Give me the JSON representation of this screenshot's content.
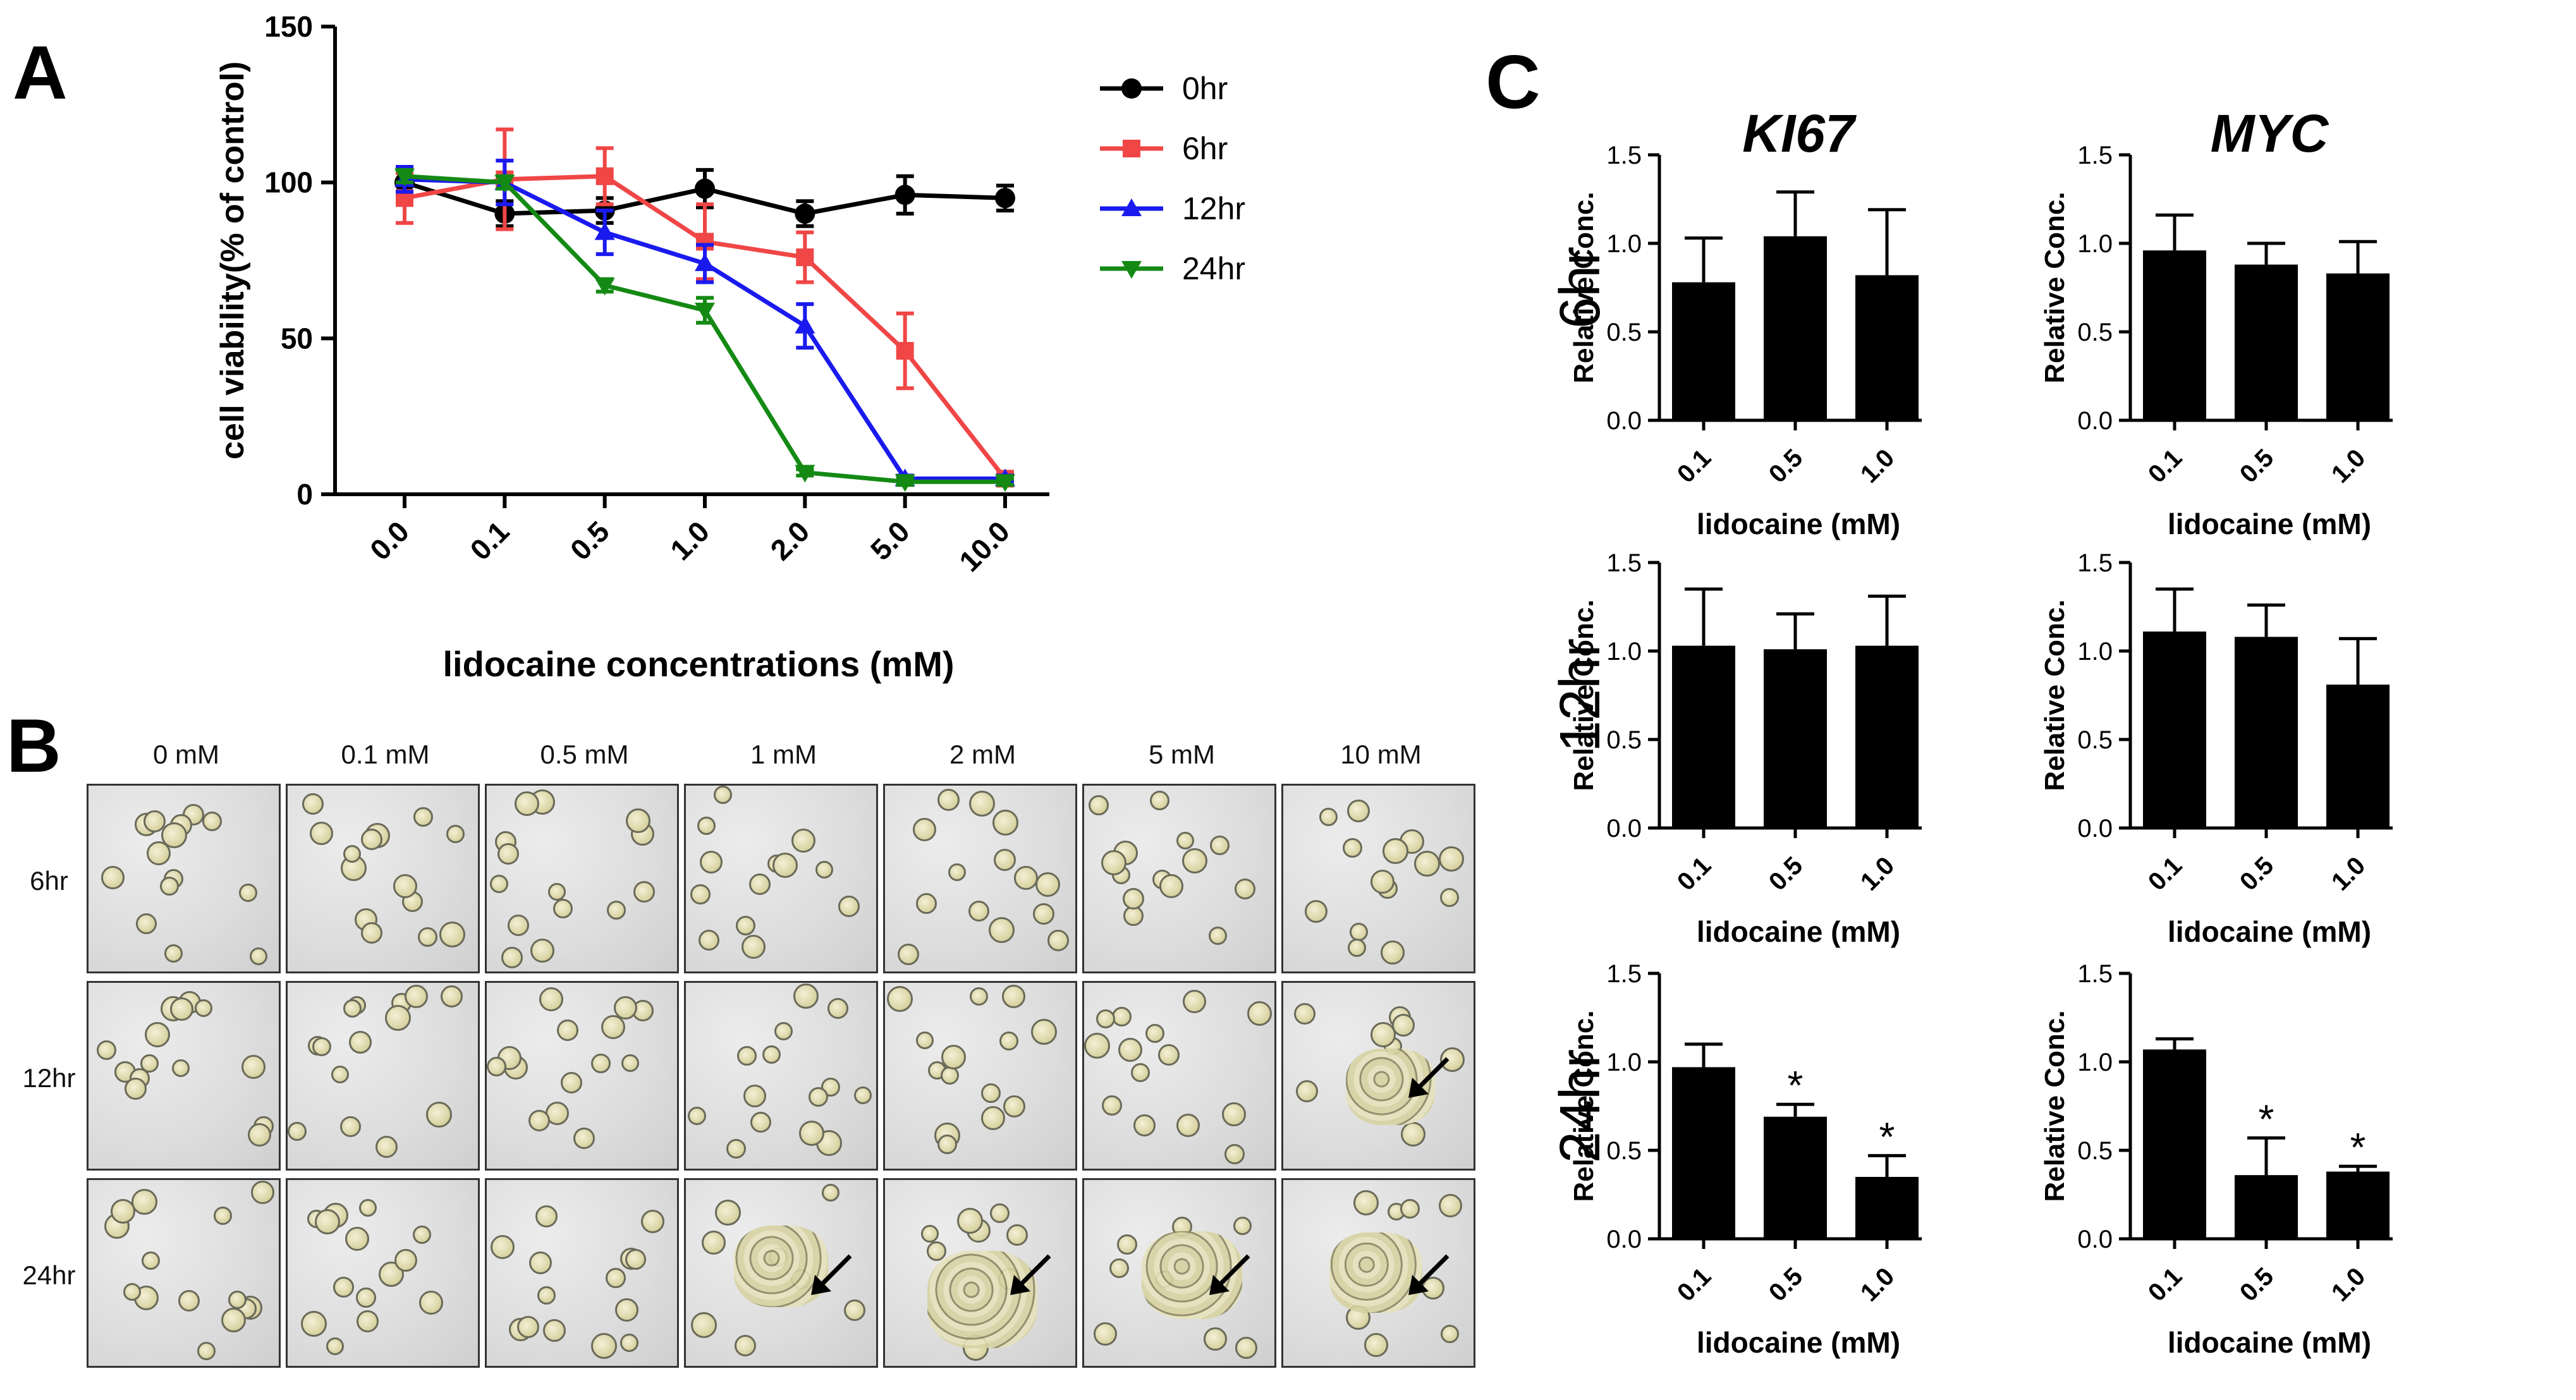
{
  "panels": {
    "a": "A",
    "b": "B",
    "c": "C"
  },
  "chart_data": [
    {
      "id": "A",
      "type": "line",
      "title": "",
      "xlabel": "lidocaine concentrations (mM)",
      "ylabel": "cell viability(% of control)",
      "categories": [
        "0.0",
        "0.1",
        "0.5",
        "1.0",
        "2.0",
        "5.0",
        "10.0"
      ],
      "ylim": [
        0,
        150
      ],
      "yticks": [
        "0",
        "50",
        "100",
        "150"
      ],
      "legend_position": "top-right",
      "series": [
        {
          "name": "0hr",
          "color": "#000000",
          "marker": "circle",
          "values": [
            100,
            90,
            91,
            98,
            90,
            96,
            95
          ],
          "errors": [
            4,
            4,
            4,
            6,
            4,
            6,
            4
          ]
        },
        {
          "name": "6hr",
          "color": "#f04646",
          "marker": "square",
          "values": [
            95,
            101,
            102,
            81,
            76,
            46,
            5
          ],
          "errors": [
            8,
            16,
            9,
            12,
            8,
            12,
            1
          ]
        },
        {
          "name": "12hr",
          "color": "#1a1aee",
          "marker": "triangle-up",
          "values": [
            101,
            100,
            84,
            74,
            54,
            5,
            5
          ],
          "errors": [
            4,
            7,
            7,
            6,
            7,
            1,
            1
          ]
        },
        {
          "name": "24hr",
          "color": "#148a14",
          "marker": "triangle-down",
          "values": [
            102,
            100,
            67,
            59,
            7,
            4,
            4
          ],
          "errors": [
            2,
            2,
            2,
            4,
            1,
            1,
            1
          ]
        }
      ]
    },
    {
      "id": "C-6hr-KI67",
      "type": "bar",
      "title": "KI67",
      "row_label": "6hr",
      "ylabel": "Relative Conc.",
      "xlabel": "lidocaine (mM)",
      "categories": [
        "0.1",
        "0.5",
        "1.0"
      ],
      "values": [
        0.78,
        1.04,
        0.82
      ],
      "errors": [
        0.25,
        0.25,
        0.37
      ],
      "significance": [
        "",
        "",
        ""
      ],
      "ylim": [
        0,
        1.5
      ],
      "yticks": [
        "0.0",
        "0.5",
        "1.0",
        "1.5"
      ]
    },
    {
      "id": "C-6hr-MYC",
      "type": "bar",
      "title": "MYC",
      "row_label": "6hr",
      "ylabel": "Relative Conc.",
      "xlabel": "lidocaine (mM)",
      "categories": [
        "0.1",
        "0.5",
        "1.0"
      ],
      "values": [
        0.96,
        0.88,
        0.83
      ],
      "errors": [
        0.2,
        0.12,
        0.18
      ],
      "significance": [
        "",
        "",
        ""
      ],
      "ylim": [
        0,
        1.5
      ],
      "yticks": [
        "0.0",
        "0.5",
        "1.0",
        "1.5"
      ]
    },
    {
      "id": "C-12hr-KI67",
      "type": "bar",
      "title": "",
      "row_label": "12hr",
      "ylabel": "Relative Conc.",
      "xlabel": "lidocaine (mM)",
      "categories": [
        "0.1",
        "0.5",
        "1.0"
      ],
      "values": [
        1.03,
        1.01,
        1.03
      ],
      "errors": [
        0.32,
        0.2,
        0.28
      ],
      "significance": [
        "",
        "",
        ""
      ],
      "ylim": [
        0,
        1.5
      ],
      "yticks": [
        "0.0",
        "0.5",
        "1.0",
        "1.5"
      ]
    },
    {
      "id": "C-12hr-MYC",
      "type": "bar",
      "title": "",
      "row_label": "12hr",
      "ylabel": "Relative Conc.",
      "xlabel": "lidocaine (mM)",
      "categories": [
        "0.1",
        "0.5",
        "1.0"
      ],
      "values": [
        1.11,
        1.08,
        0.81
      ],
      "errors": [
        0.24,
        0.18,
        0.26
      ],
      "significance": [
        "",
        "",
        ""
      ],
      "ylim": [
        0,
        1.5
      ],
      "yticks": [
        "0.0",
        "0.5",
        "1.0",
        "1.5"
      ]
    },
    {
      "id": "C-24hr-KI67",
      "type": "bar",
      "title": "",
      "row_label": "24hr",
      "ylabel": "Relative Conc.",
      "xlabel": "lidocaine (mM)",
      "categories": [
        "0.1",
        "0.5",
        "1.0"
      ],
      "values": [
        0.97,
        0.69,
        0.35
      ],
      "errors": [
        0.13,
        0.07,
        0.12
      ],
      "significance": [
        "",
        "*",
        "*"
      ],
      "ylim": [
        0,
        1.5
      ],
      "yticks": [
        "0.0",
        "0.5",
        "1.0",
        "1.5"
      ]
    },
    {
      "id": "C-24hr-MYC",
      "type": "bar",
      "title": "",
      "row_label": "24hr",
      "ylabel": "Relative Conc.",
      "xlabel": "lidocaine (mM)",
      "categories": [
        "0.1",
        "0.5",
        "1.0"
      ],
      "values": [
        1.07,
        0.36,
        0.38
      ],
      "errors": [
        0.06,
        0.21,
        0.03
      ],
      "significance": [
        "",
        "*",
        "*"
      ],
      "ylim": [
        0,
        1.5
      ],
      "yticks": [
        "0.0",
        "0.5",
        "1.0",
        "1.5"
      ]
    }
  ],
  "micrographs": {
    "columns": [
      "0 mM",
      "0.1 mM",
      "0.5 mM",
      "1 mM",
      "2 mM",
      "5 mM",
      "10 mM"
    ],
    "rows": [
      "6hr",
      "12hr",
      "24hr"
    ],
    "arrows_at": [
      [
        1,
        6
      ],
      [
        2,
        3
      ],
      [
        2,
        4
      ],
      [
        2,
        5
      ],
      [
        2,
        6
      ]
    ]
  }
}
